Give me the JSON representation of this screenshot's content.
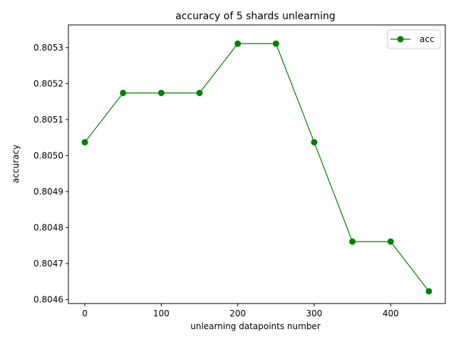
{
  "chart_data": {
    "type": "line",
    "title": "accuracy of 5 shards unlearning",
    "xlabel": "unlearning datapoints number",
    "ylabel": "accuracy",
    "xlim": [
      -21.5,
      471.5
    ],
    "ylim": [
      0.804589,
      0.805363
    ],
    "xticks": [
      0,
      100,
      200,
      300,
      400
    ],
    "xtick_labels": [
      "0",
      "100",
      "200",
      "300",
      "400"
    ],
    "yticks": [
      0.8046,
      0.8047,
      0.8048,
      0.8049,
      0.805,
      0.8051,
      0.8052,
      0.8053
    ],
    "ytick_labels": [
      "0.8046",
      "0.8047",
      "0.8048",
      "0.8049",
      "0.8050",
      "0.8051",
      "0.8052",
      "0.8053"
    ],
    "grid": false,
    "legend_position": "top-right",
    "series": [
      {
        "name": "acc",
        "color": "#008000",
        "marker": "circle",
        "x": [
          0,
          50,
          100,
          150,
          200,
          250,
          300,
          350,
          400,
          450
        ],
        "y": [
          0.805037,
          0.805174,
          0.805174,
          0.805174,
          0.805311,
          0.805311,
          0.805037,
          0.804761,
          0.804761,
          0.804623
        ]
      }
    ]
  }
}
